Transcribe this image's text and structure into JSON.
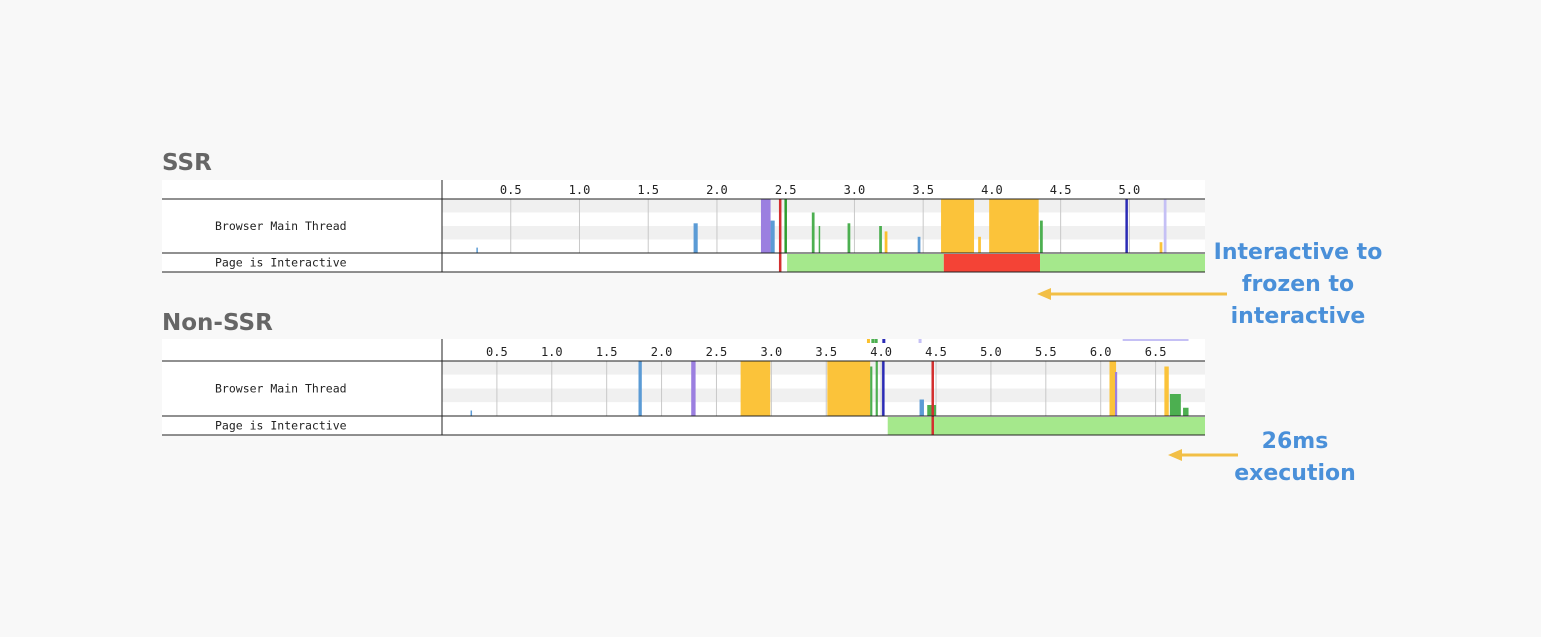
{
  "chart_data": [
    {
      "type": "timeline",
      "title": "SSR",
      "xlim": [
        0,
        5.55
      ],
      "x_ticks": [
        0.5,
        1.0,
        1.5,
        2.0,
        2.5,
        3.0,
        3.5,
        4.0,
        4.5,
        5.0
      ],
      "x_tick_labels": [
        "0.5",
        "1.0",
        "1.5",
        "2.0",
        "2.5",
        "3.0",
        "3.5",
        "4.0",
        "4.5",
        "5.0"
      ],
      "rows": [
        "Browser Main Thread",
        "Page is Interactive"
      ],
      "activity": [
        {
          "x": 0.25,
          "width": 0.01,
          "height": 0.1,
          "color": "#5b9bd5"
        },
        {
          "x": 1.83,
          "width": 0.03,
          "height": 0.55,
          "color": "#5b9bd5"
        },
        {
          "x": 2.32,
          "width": 0.07,
          "height": 1.0,
          "color": "#9b7fe0"
        },
        {
          "x": 2.39,
          "width": 0.03,
          "height": 0.6,
          "color": "#5b9bd5"
        },
        {
          "x": 2.69,
          "width": 0.02,
          "height": 0.75,
          "color": "#4caf50"
        },
        {
          "x": 2.74,
          "width": 0.01,
          "height": 0.5,
          "color": "#4caf50"
        },
        {
          "x": 2.95,
          "width": 0.02,
          "height": 0.55,
          "color": "#4caf50"
        },
        {
          "x": 3.18,
          "width": 0.02,
          "height": 0.5,
          "color": "#4caf50"
        },
        {
          "x": 3.22,
          "width": 0.02,
          "height": 0.4,
          "color": "#fbc02d"
        },
        {
          "x": 3.46,
          "width": 0.02,
          "height": 0.3,
          "color": "#5b9bd5"
        },
        {
          "x": 3.63,
          "width": 0.24,
          "height": 1.0,
          "color": "#fbc33a"
        },
        {
          "x": 3.9,
          "width": 0.02,
          "height": 0.3,
          "color": "#fbc33a"
        },
        {
          "x": 3.98,
          "width": 0.36,
          "height": 1.0,
          "color": "#fbc33a"
        },
        {
          "x": 4.35,
          "width": 0.02,
          "height": 0.6,
          "color": "#4caf50"
        },
        {
          "x": 5.22,
          "width": 0.02,
          "height": 0.2,
          "color": "#fbc33a"
        },
        {
          "x": 5.25,
          "width": 0.02,
          "height": 1.0,
          "color": "#c5c0f5"
        }
      ],
      "markers": [
        {
          "x": 2.46,
          "color": "#d32f2f",
          "extends_to_interactive": true
        },
        {
          "x": 2.5,
          "color": "#2e9e2e"
        },
        {
          "x": 4.98,
          "color": "#2b2bb5"
        }
      ],
      "interactive_segments": [
        {
          "start": 2.51,
          "end": 3.65,
          "color": "#a5e88c"
        },
        {
          "start": 3.65,
          "end": 4.35,
          "color": "#f44336"
        },
        {
          "start": 4.35,
          "end": 5.55,
          "color": "#a5e88c"
        }
      ],
      "annotation": "Interactive to\nfrozen to\ninteractive"
    },
    {
      "type": "timeline",
      "title": "Non-SSR",
      "xlim": [
        0,
        6.95
      ],
      "x_ticks": [
        0.5,
        1.0,
        1.5,
        2.0,
        2.5,
        3.0,
        3.5,
        4.0,
        4.5,
        5.0,
        5.5,
        6.0,
        6.5
      ],
      "x_tick_labels": [
        "0.5",
        "1.0",
        "1.5",
        "2.0",
        "2.5",
        "3.0",
        "3.5",
        "4.0",
        "4.5",
        "5.0",
        "5.5",
        "6.0",
        "6.5"
      ],
      "rows": [
        "Browser Main Thread",
        "Page is Interactive"
      ],
      "activity": [
        {
          "x": 0.26,
          "width": 0.01,
          "height": 0.1,
          "color": "#5b9bd5"
        },
        {
          "x": 1.79,
          "width": 0.03,
          "height": 1.0,
          "color": "#5b9bd5"
        },
        {
          "x": 2.27,
          "width": 0.04,
          "height": 1.0,
          "color": "#9b7fe0"
        },
        {
          "x": 2.72,
          "width": 0.27,
          "height": 1.0,
          "color": "#fbc33a"
        },
        {
          "x": 3.51,
          "width": 0.39,
          "height": 1.0,
          "color": "#fbc33a"
        },
        {
          "x": 3.9,
          "width": 0.02,
          "height": 0.9,
          "color": "#4caf50"
        },
        {
          "x": 3.95,
          "width": 0.02,
          "height": 1.0,
          "color": "#4caf50"
        },
        {
          "x": 4.35,
          "width": 0.04,
          "height": 0.3,
          "color": "#5b9bd5"
        },
        {
          "x": 4.42,
          "width": 0.08,
          "height": 0.2,
          "color": "#4caf50"
        },
        {
          "x": 6.08,
          "width": 0.06,
          "height": 1.0,
          "color": "#fbc33a"
        },
        {
          "x": 6.13,
          "width": 0.02,
          "height": 0.8,
          "color": "#9b7fe0"
        },
        {
          "x": 6.58,
          "width": 0.04,
          "height": 0.9,
          "color": "#fbc33a"
        },
        {
          "x": 6.63,
          "width": 0.1,
          "height": 0.4,
          "color": "#4caf50"
        },
        {
          "x": 6.75,
          "width": 0.05,
          "height": 0.15,
          "color": "#4caf50"
        }
      ],
      "markers": [
        {
          "x": 4.02,
          "color": "#2b2bb5"
        },
        {
          "x": 4.47,
          "color": "#d32f2f",
          "extends_to_interactive": true
        }
      ],
      "top_ticks": [
        {
          "x": 3.88,
          "color": "#fbc02d"
        },
        {
          "x": 3.92,
          "color": "#4caf50"
        },
        {
          "x": 3.95,
          "color": "#4caf50"
        },
        {
          "x": 4.02,
          "color": "#2b2bb5"
        },
        {
          "x": 4.35,
          "color": "#c5c0f5"
        }
      ],
      "top_band": {
        "start": 6.2,
        "end": 6.8,
        "color": "#c5c0f5"
      },
      "interactive_segments": [
        {
          "start": 4.06,
          "end": 6.95,
          "color": "#a5e88c"
        }
      ],
      "annotation": "26ms\nexecution"
    }
  ]
}
